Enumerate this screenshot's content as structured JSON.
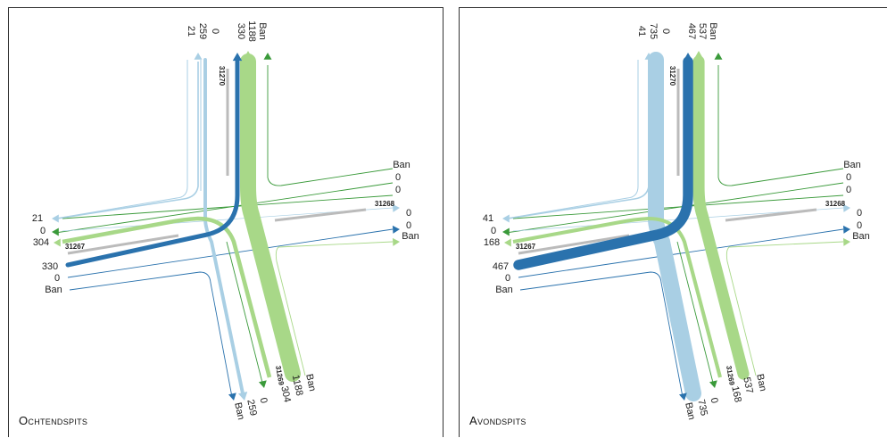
{
  "panels": [
    {
      "id": "left",
      "title": "Ochtendspits",
      "north": [
        "21",
        "259",
        "0",
        "330",
        "1188",
        "Ban"
      ],
      "east": [
        "Ban",
        "0",
        "0",
        "0",
        "0",
        "Ban"
      ],
      "west": [
        "21",
        "0",
        "304",
        "330",
        "0",
        "Ban"
      ],
      "south": [
        "Ban",
        "259",
        "0",
        "304",
        "1188",
        "Ban"
      ],
      "counters": {
        "north": "31270",
        "east": "31268",
        "west": "31267",
        "south": "31269"
      },
      "flows": {
        "south_to_north": 1188,
        "west_to_north": 330,
        "north_to_south": 259,
        "south_to_west": 304,
        "north_to_west": 21
      }
    },
    {
      "id": "right",
      "title": "Avondspits",
      "north": [
        "41",
        "735",
        "0",
        "467",
        "537",
        "Ban"
      ],
      "east": [
        "Ban",
        "0",
        "0",
        "0",
        "0",
        "Ban"
      ],
      "west": [
        "41",
        "0",
        "168",
        "467",
        "0",
        "Ban"
      ],
      "south": [
        "Ban",
        "735",
        "0",
        "168",
        "537",
        "Ban"
      ],
      "counters": {
        "north": "31270",
        "east": "31268",
        "west": "31267",
        "south": "31269"
      },
      "flows": {
        "south_to_north": 537,
        "west_to_north": 467,
        "north_to_south": 735,
        "south_to_west": 168,
        "north_to_west": 41
      }
    }
  ],
  "colors": {
    "light_blue": "#a9cfe4",
    "dark_blue": "#2a72ad",
    "light_green": "#a8d888",
    "dark_green": "#3a9a3a",
    "counter_grey": "#bbbbbb"
  }
}
